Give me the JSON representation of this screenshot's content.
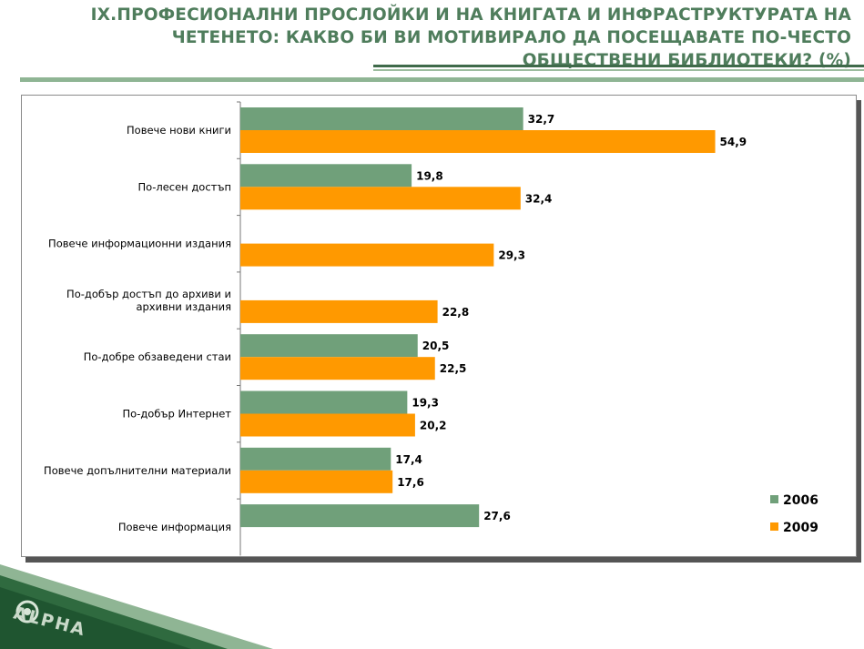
{
  "header": {
    "title": "IX.ПРОФЕСИОНАЛНИ ПРОСЛОЙКИ И НА КНИГАТА И ИНФРАСТРУКТУРАТА НА ЧЕТЕНЕТО: КАКВО БИ ВИ МОТИВИРАЛО ДА ПОСЕЩАВАТЕ ПО-ЧЕСТО ОБЩЕСТВЕНИ БИБЛИОТЕКИ? (%)"
  },
  "brand": {
    "text": "ALPHA"
  },
  "colors": {
    "title": "#4f7d5c",
    "s2006": "#70a07a",
    "s2009": "#ff9900"
  },
  "chart_data": {
    "type": "bar",
    "orientation": "horizontal",
    "title": "IX.ПРОФЕСИОНАЛНИ ПРОСЛОЙКИ И НА КНИГАТА И ИНФРАСТРУКТУРАТА НА ЧЕТЕНЕТО: КАКВО БИ ВИ МОТИВИРАЛО ДА ПОСЕЩАВАТЕ ПО-ЧЕСТО ОБЩЕСТВЕНИ БИБЛИОТЕКИ? (%)",
    "categories": [
      "Повече нови книги",
      "По-лесен достъп",
      "Повече информационни издания",
      "По-добър достъп до архиви и архивни издания",
      "По-добре обзаведени стаи",
      "По-добър Интернет",
      "Повече допълнителни материали",
      "Повече информация"
    ],
    "series": [
      {
        "name": "2006",
        "color": "#70a07a",
        "values": [
          32.7,
          19.8,
          null,
          null,
          20.5,
          19.3,
          17.4,
          27.6
        ],
        "labels": [
          "32,7",
          "19,8",
          "",
          "",
          "20,5",
          "19,3",
          "17,4",
          "27,6"
        ]
      },
      {
        "name": "2009",
        "color": "#ff9900",
        "values": [
          54.9,
          32.4,
          29.3,
          22.8,
          22.5,
          20.2,
          17.6,
          null
        ],
        "labels": [
          "54,9",
          "32,4",
          "29,3",
          "22,8",
          "22,5",
          "20,2",
          "17,6",
          ""
        ]
      }
    ],
    "xlim": [
      0,
      60
    ],
    "xlabel": "",
    "ylabel": "",
    "grid": false,
    "legend": "right"
  }
}
